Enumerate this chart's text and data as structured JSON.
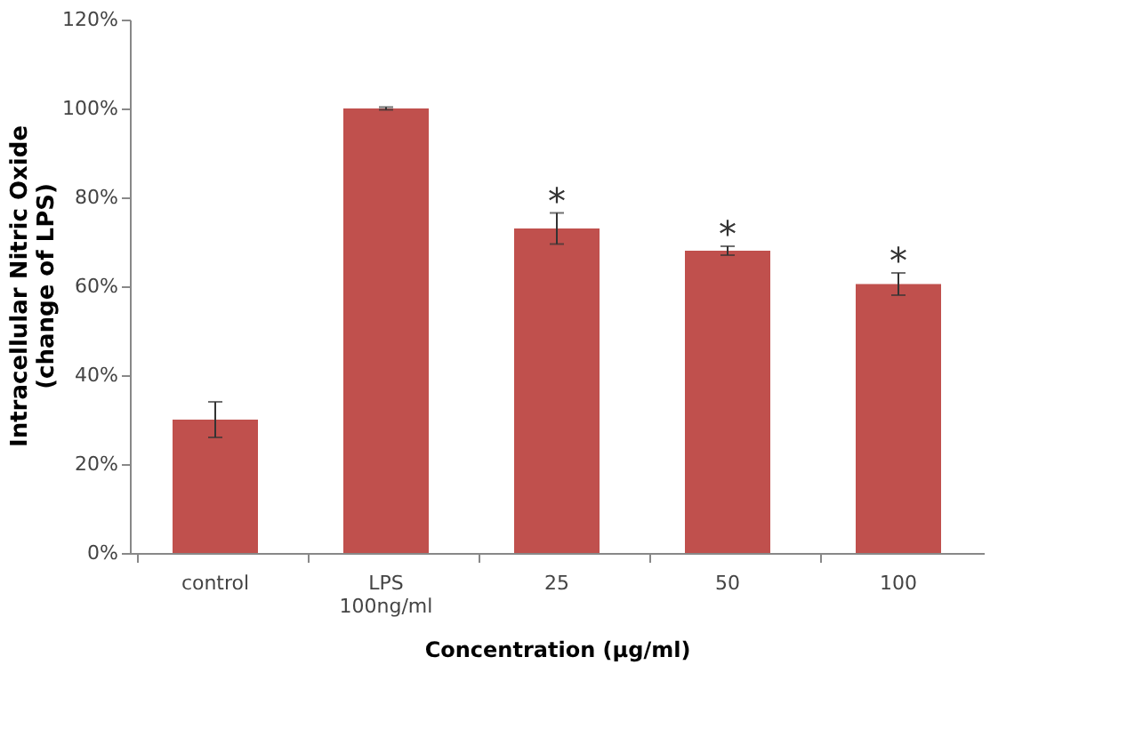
{
  "chart_data": {
    "type": "bar",
    "xlabel": "Concentration  (µg/ml)",
    "ylabel": "Intracellular Nitric Oxide\n(change of LPS)",
    "categories": [
      "control",
      "LPS\n100ng/ml",
      "25",
      "50",
      "100"
    ],
    "values": [
      30,
      100,
      73,
      68,
      60.5
    ],
    "errors": [
      4,
      0.3,
      3.5,
      1,
      2.5
    ],
    "color": "#c0504d",
    "ylim": [
      0,
      120
    ],
    "yticks": [
      {
        "value": 0,
        "label": "0%"
      },
      {
        "value": 20,
        "label": "20%"
      },
      {
        "value": 40,
        "label": "40%"
      },
      {
        "value": 60,
        "label": "60%"
      },
      {
        "value": 80,
        "label": "80%"
      },
      {
        "value": 100,
        "label": "100%"
      },
      {
        "value": 120,
        "label": "120%"
      }
    ],
    "annotations": [
      {
        "text": "*",
        "x": "25",
        "y": 76.5
      },
      {
        "text": "*",
        "x": "50",
        "y": 69
      },
      {
        "text": "*",
        "x": "100",
        "y": 63
      }
    ],
    "grid": false
  }
}
